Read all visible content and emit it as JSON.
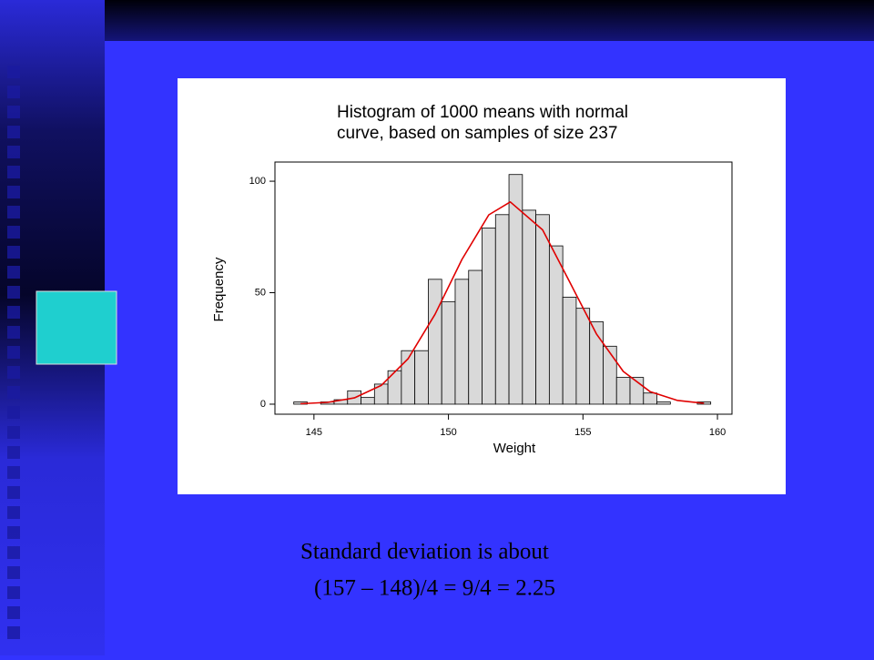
{
  "chart_data": {
    "type": "histogram",
    "title": [
      "Histogram of 1000 means with normal",
      "curve, based on samples of size 237"
    ],
    "xlabel": "Weight",
    "ylabel": "Frequency",
    "bins": [
      144.25,
      144.75,
      145.25,
      145.75,
      146.25,
      146.75,
      147.25,
      147.75,
      148.25,
      148.75,
      149.25,
      149.75,
      150.25,
      150.75,
      151.25,
      151.75,
      152.25,
      152.75,
      153.25,
      153.75,
      154.25,
      154.75,
      155.25,
      155.75,
      156.25,
      156.75,
      157.25,
      157.75,
      158.25,
      158.75,
      159.25,
      159.75
    ],
    "counts": [
      1,
      0,
      1,
      2,
      6,
      3,
      9,
      15,
      24,
      24,
      56,
      46,
      56,
      60,
      79,
      85,
      103,
      87,
      85,
      71,
      48,
      43,
      37,
      26,
      12,
      12,
      5,
      1,
      0,
      0,
      1
    ],
    "color": "#d9d9d9",
    "edgecolor": "#000000",
    "curve_x": [
      144.5,
      145.5,
      146.5,
      147.5,
      148.5,
      149.5,
      150.5,
      151.5,
      152.3,
      153.5,
      154.5,
      155.5,
      156.5,
      157.5,
      158.5,
      159.5
    ],
    "curve_y": [
      0.2,
      0.8,
      2.8,
      8.4,
      20.4,
      40.3,
      64.9,
      84.9,
      90.7,
      78.2,
      55.0,
      31.5,
      14.7,
      5.6,
      1.7,
      0.4
    ],
    "curve_color": "#e00000",
    "xlim": [
      143.55,
      160.54
    ],
    "ylim": [
      -4.5,
      108.6
    ],
    "xticks": [
      145,
      150,
      155,
      160
    ],
    "yticks": [
      0,
      50,
      100
    ]
  },
  "slide": {
    "lines": [
      "Standard deviation is about",
      "(157 – 148)/4 = 9/4 = 2.25"
    ]
  }
}
